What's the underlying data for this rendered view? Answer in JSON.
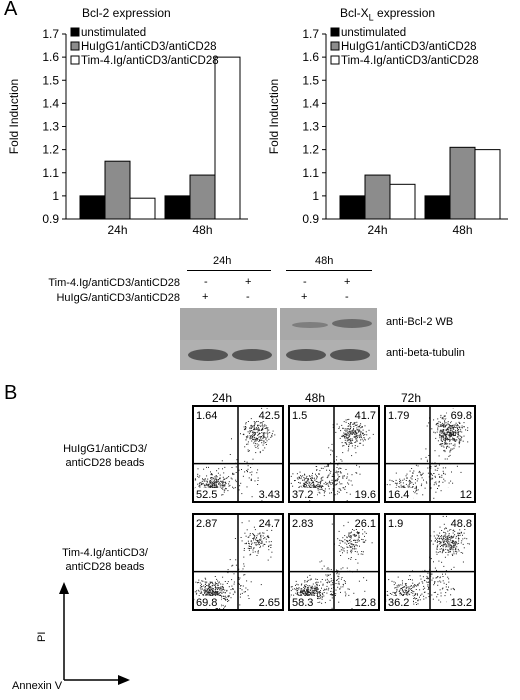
{
  "panel_a": {
    "letter": "A",
    "charts": [
      {
        "title": "Bcl-2 expression",
        "ylabel": "Fold Induction",
        "yticks": [
          "0.9",
          "1",
          "1.1",
          "1.2",
          "1.3",
          "1.4",
          "1.5",
          "1.6",
          "1.7"
        ],
        "categories": [
          "24h",
          "48h"
        ],
        "legend": [
          "unstimulated",
          "HuIgG1/antiCD3/antiCD28",
          "Tim-4.Ig/antiCD3/antiCD28"
        ],
        "colors": [
          "#000000",
          "#8c8c8c",
          "#ffffff"
        ]
      },
      {
        "title_main": "Bcl-X",
        "title_sub": "L",
        "title_tail": " expression",
        "ylabel": "Fold Induction",
        "yticks": [
          "0.9",
          "1",
          "1.1",
          "1.2",
          "1.3",
          "1.4",
          "1.5",
          "1.6",
          "1.7"
        ],
        "categories": [
          "24h",
          "48h"
        ],
        "legend": [
          "unstimulated",
          "HuIgG1/antiCD3/antiCD28",
          "Tim-4.Ig/antiCD3/antiCD28"
        ],
        "colors": [
          "#000000",
          "#8c8c8c",
          "#ffffff"
        ]
      }
    ]
  },
  "chart_data": [
    {
      "type": "bar",
      "title": "Bcl-2 expression",
      "ylabel": "Fold Induction",
      "categories": [
        "24h",
        "48h"
      ],
      "ylim": [
        0.9,
        1.7
      ],
      "series": [
        {
          "name": "unstimulated",
          "values": [
            1.0,
            1.0
          ]
        },
        {
          "name": "HuIgG1/antiCD3/antiCD28",
          "values": [
            1.15,
            1.09
          ]
        },
        {
          "name": "Tim-4.Ig/antiCD3/antiCD28",
          "values": [
            0.99,
            1.6
          ]
        }
      ]
    },
    {
      "type": "bar",
      "title": "Bcl-XL expression",
      "ylabel": "Fold Induction",
      "categories": [
        "24h",
        "48h"
      ],
      "ylim": [
        0.9,
        1.7
      ],
      "series": [
        {
          "name": "unstimulated",
          "values": [
            1.0,
            1.0
          ]
        },
        {
          "name": "HuIgG1/antiCD3/antiCD28",
          "values": [
            1.09,
            1.21
          ]
        },
        {
          "name": "Tim-4.Ig/antiCD3/antiCD28",
          "values": [
            1.05,
            1.2
          ]
        }
      ]
    }
  ],
  "western_blot": {
    "time_24": "24h",
    "time_48": "48h",
    "row1_label": "Tim-4.Ig/antiCD3/antiCD28",
    "row2_label": "HuIgG/antiCD3/antiCD28",
    "row1_signs": [
      "-",
      "+",
      "-",
      "+"
    ],
    "row2_signs": [
      "+",
      "-",
      "+",
      "-"
    ],
    "band1_label": "anti-Bcl-2 WB",
    "band2_label": "anti-beta-tubulin"
  },
  "panel_b": {
    "letter": "B",
    "col_heads": [
      "24h",
      "48h",
      "72h"
    ],
    "row_labels": [
      "HuIgG1/antiCD3/\nantiCD28 beads",
      "Tim-4.Ig/antiCD3/\nantiCD28 beads"
    ],
    "quadrants": [
      [
        [
          "1.64",
          "42.5",
          "52.5",
          "3.43"
        ],
        [
          "1.5",
          "41.7",
          "37.2",
          "19.6"
        ],
        [
          "1.79",
          "69.8",
          "16.4",
          "12"
        ]
      ],
      [
        [
          "2.87",
          "24.7",
          "69.8",
          "2.65"
        ],
        [
          "2.83",
          "26.1",
          "58.3",
          "12.8"
        ],
        [
          "1.9",
          "48.8",
          "36.2",
          "13.2"
        ]
      ]
    ],
    "axis_y": "PI",
    "axis_x": "Annexin V"
  }
}
